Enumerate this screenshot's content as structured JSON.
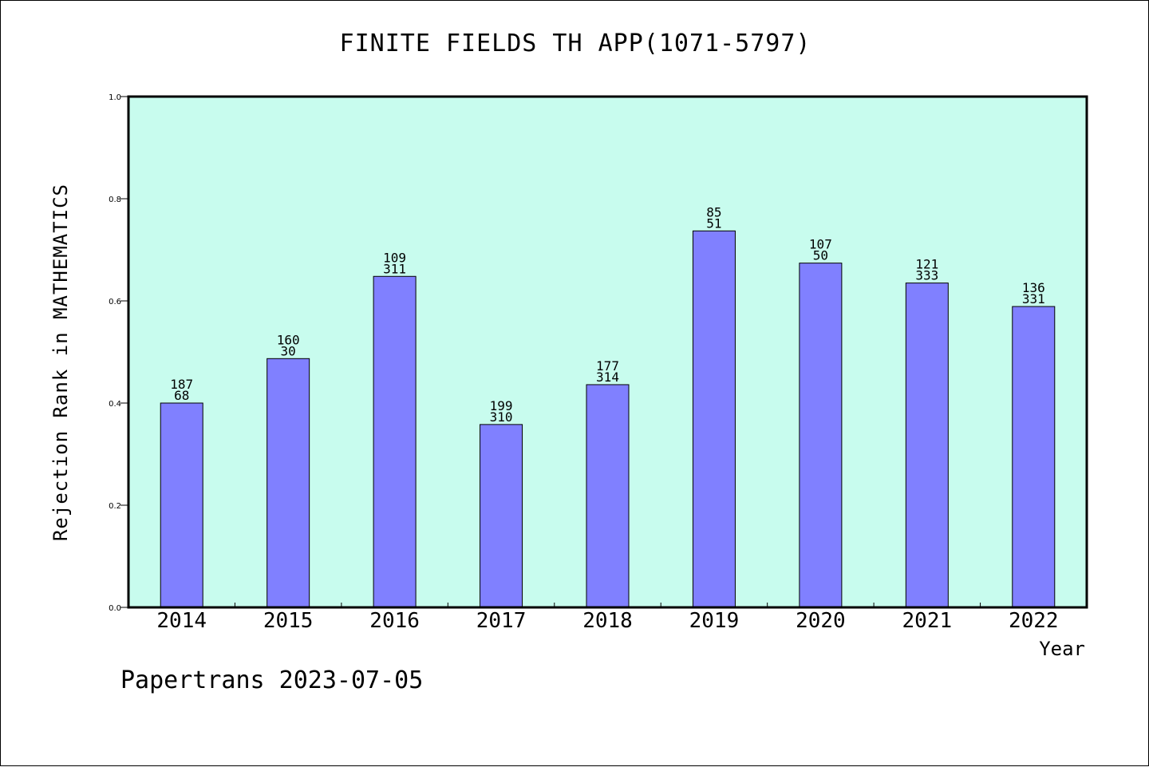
{
  "footer": "Papertrans 2023-07-05",
  "chart_data": {
    "type": "bar",
    "title": "FINITE FIELDS TH APP(1071-5797)",
    "xlabel": "Year",
    "ylabel": "Rejection Rank in MATHEMATICS",
    "ylim": [
      0,
      1.0
    ],
    "yticks": [
      "0.0",
      "0.2",
      "0.4",
      "0.6",
      "0.8",
      "1.0"
    ],
    "categories": [
      "2014",
      "2015",
      "2016",
      "2017",
      "2018",
      "2019",
      "2020",
      "2021",
      "2022"
    ],
    "values": [
      0.4,
      0.487,
      0.648,
      0.358,
      0.436,
      0.737,
      0.674,
      0.635,
      0.589
    ],
    "labels_top": [
      "187",
      "160",
      "109",
      "199",
      "177",
      "85",
      "107",
      "121",
      "136"
    ],
    "labels_bottom": [
      "68",
      "30",
      "311",
      "310",
      "314",
      "51",
      "50",
      "333",
      "331"
    ],
    "grid": false,
    "colors": {
      "bar": "#8080ff",
      "plot_background": "#c8fcee",
      "axis": "#000000"
    }
  }
}
